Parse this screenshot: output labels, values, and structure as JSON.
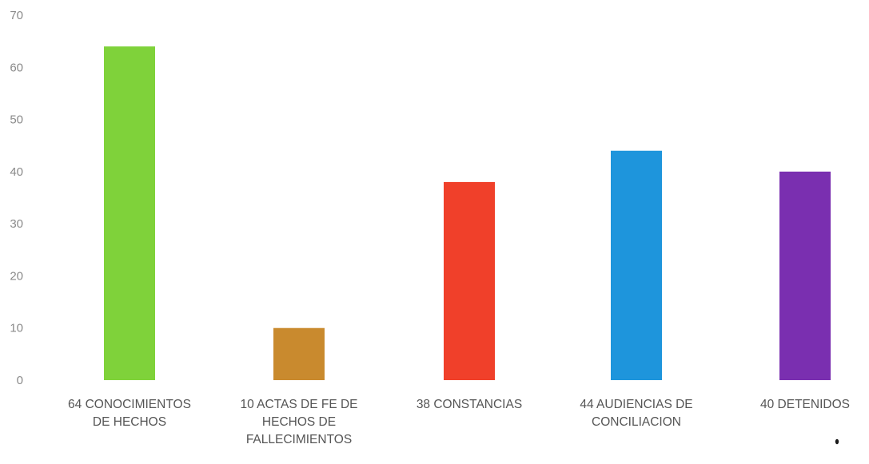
{
  "chart_data": {
    "type": "bar",
    "categories": [
      [
        "64 CONOCIMIENTOS",
        "DE HECHOS"
      ],
      [
        "10 ACTAS  DE FE DE",
        "HECHOS DE",
        "FALLECIMIENTOS"
      ],
      [
        "38 CONSTANCIAS"
      ],
      [
        "44 AUDIENCIAS DE",
        "CONCILIACION"
      ],
      [
        "40 DETENIDOS"
      ]
    ],
    "values": [
      64,
      10,
      38,
      44,
      40
    ],
    "colors": [
      "#7fd23a",
      "#c98a2e",
      "#f0402a",
      "#1e95dc",
      "#7a2fb0"
    ],
    "title": "",
    "xlabel": "",
    "ylabel": "",
    "ylim": [
      0,
      70
    ],
    "yticks": [
      "0",
      "10",
      "20",
      "30",
      "40",
      "50",
      "60",
      "70"
    ],
    "grid": false,
    "legend": "none"
  }
}
